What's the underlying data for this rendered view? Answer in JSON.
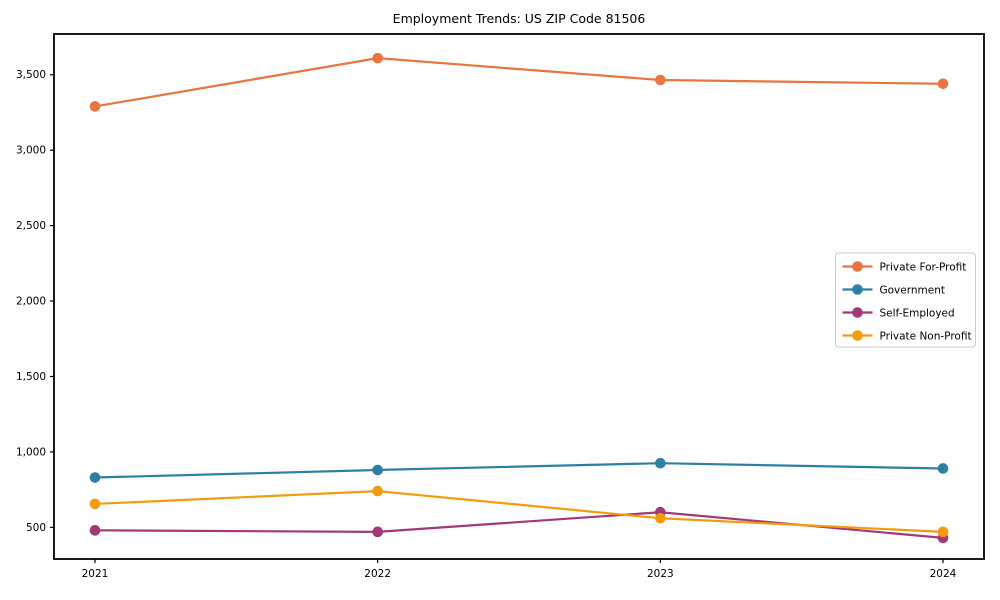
{
  "title": "Employment Trends: US ZIP Code 81506",
  "chart_data": {
    "type": "line",
    "title": "Employment Trends: US ZIP Code 81506",
    "xlabel": "",
    "ylabel": "",
    "x": [
      2021,
      2022,
      2023,
      2024
    ],
    "x_labels": [
      "2021",
      "2022",
      "2023",
      "2024"
    ],
    "series": [
      {
        "name": "Private For-Profit",
        "color": "#e8743f",
        "values": [
          3290,
          3610,
          3465,
          3440
        ]
      },
      {
        "name": "Government",
        "color": "#2d80a3",
        "values": [
          830,
          880,
          925,
          890
        ]
      },
      {
        "name": "Self-Employed",
        "color": "#a23878",
        "values": [
          480,
          470,
          600,
          430
        ]
      },
      {
        "name": "Private Non-Profit",
        "color": "#f39c0b",
        "values": [
          655,
          740,
          560,
          470
        ]
      }
    ],
    "yticks": [
      500,
      1000,
      1500,
      2000,
      2500,
      3000,
      3500
    ],
    "ytick_labels": [
      "500",
      "1,000",
      "1,500",
      "2,000",
      "2,500",
      "3,000",
      "3,500"
    ],
    "ylim": [
      290,
      3770
    ],
    "grid": false,
    "legend_position": "center right",
    "marker": "o",
    "spine_color": "#000000",
    "background_color": "#ffffff",
    "legend_border_color": "#cccccc"
  }
}
